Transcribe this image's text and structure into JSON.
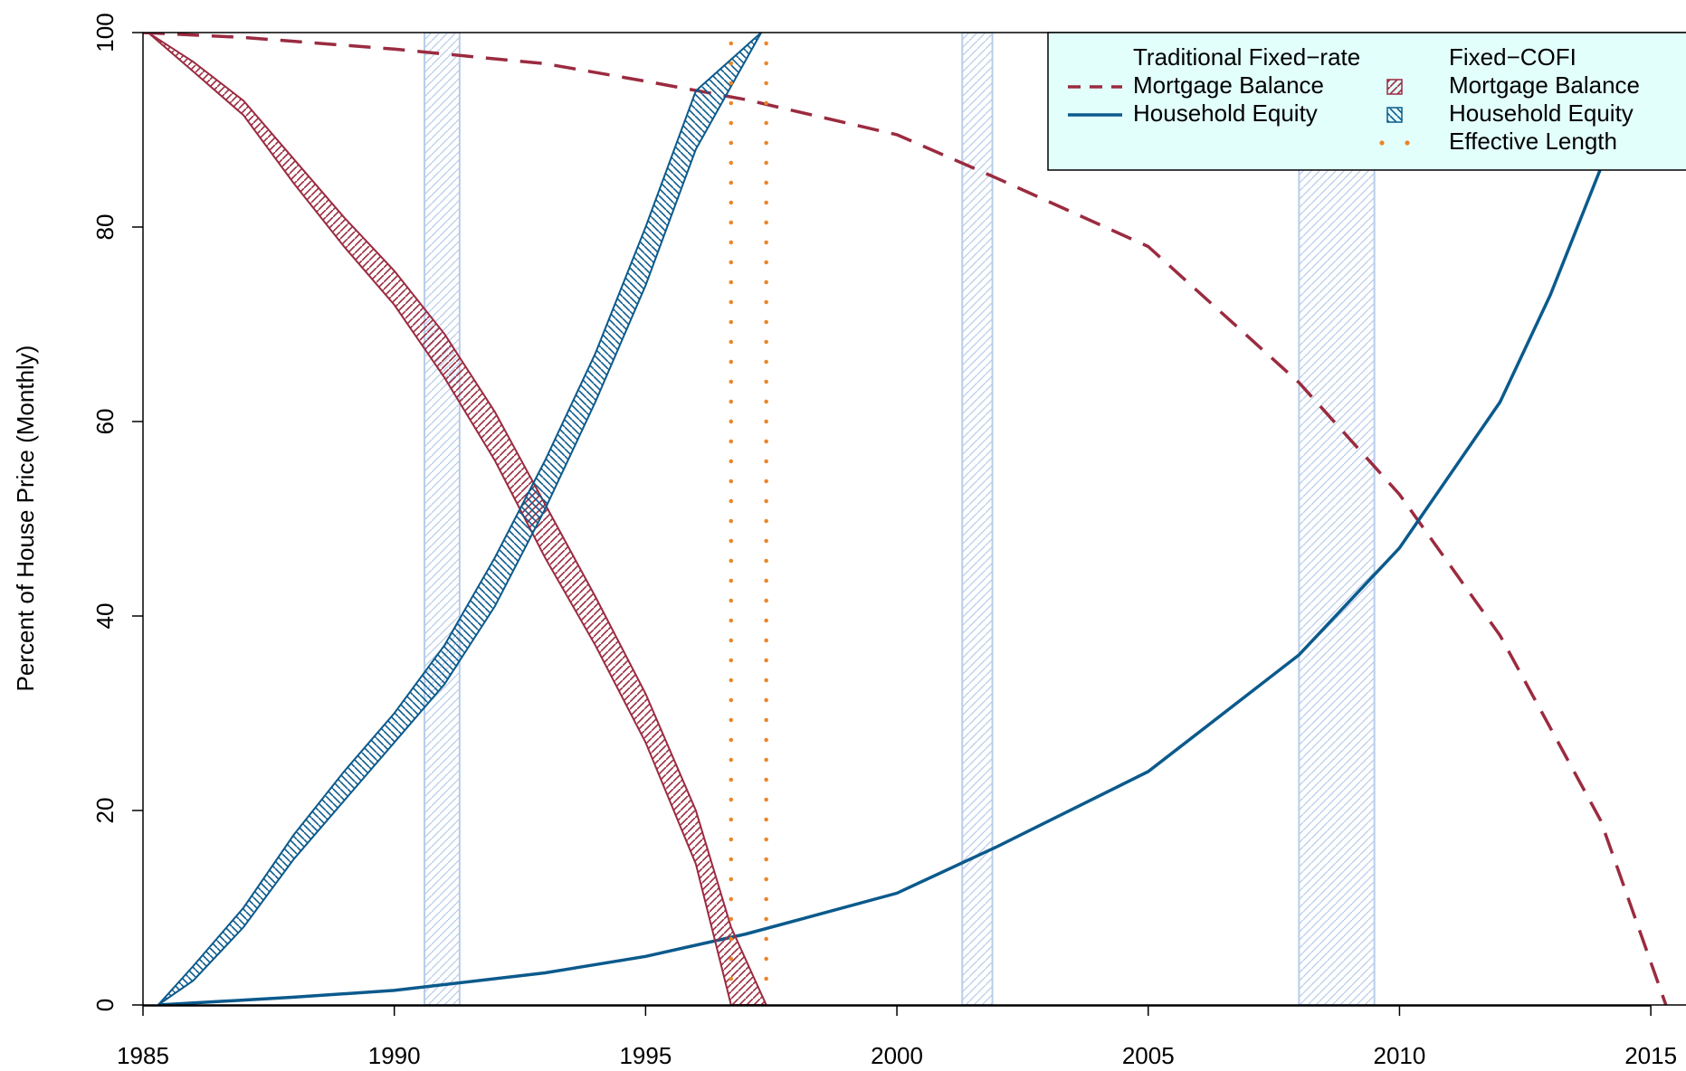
{
  "chart_data": {
    "type": "line",
    "y_label": "Percent of House Price (Monthly)",
    "xlim": [
      1985,
      2015.7
    ],
    "ylim": [
      0,
      100
    ],
    "xticks": [
      1985,
      1990,
      1995,
      2000,
      2005,
      2010,
      2015
    ],
    "yticks": [
      0,
      20,
      40,
      60,
      80,
      100
    ],
    "shaded_color": "#b8cdea",
    "shaded_periods": [
      [
        1990.6,
        1991.3
      ],
      [
        2001.3,
        2001.9
      ],
      [
        2008.0,
        2009.5
      ]
    ],
    "series": [
      {
        "name": "Mortgage Balance",
        "kind": "line",
        "dash": true,
        "color": "#9b2b40",
        "x": [
          1985,
          1987,
          1990,
          1993,
          1995,
          1997,
          2000,
          2002,
          2005,
          2008,
          2010,
          2012,
          2014,
          2015.3
        ],
        "values": [
          100,
          99.5,
          98.3,
          96.8,
          95,
          93.1,
          89.5,
          85,
          78,
          64,
          52.5,
          38,
          19,
          0
        ]
      },
      {
        "name": "Household Equity",
        "kind": "line",
        "dash": false,
        "color": "#0b5a8c",
        "x": [
          1985.3,
          1988,
          1990,
          1993,
          1995,
          1997,
          2000,
          2002,
          2005,
          2008,
          2010,
          2012,
          2013,
          2014,
          2015.7
        ],
        "values": [
          0,
          0.8,
          1.5,
          3.3,
          5,
          7.3,
          11.5,
          16.3,
          24,
          36,
          47,
          62,
          73,
          86,
          100
        ]
      },
      {
        "name": "Mortgage Balance",
        "kind": "band",
        "hatch": "/",
        "color": "#9b2b40",
        "x": [
          1985.1,
          1986,
          1987,
          1988,
          1989,
          1990,
          1991,
          1992,
          1993,
          1994,
          1995,
          1996,
          1996.7,
          1997.4
        ],
        "lower": [
          100,
          96,
          91.5,
          84.5,
          78,
          72,
          64.5,
          56,
          46,
          37,
          27,
          14.5,
          0,
          0
        ],
        "upper": [
          100,
          97,
          93,
          87,
          81,
          75.5,
          69,
          61,
          51.5,
          42,
          32,
          20,
          8,
          0
        ]
      },
      {
        "name": "Household Equity",
        "kind": "band",
        "hatch": "\\",
        "color": "#0b5a8c",
        "x": [
          1985.3,
          1986,
          1987,
          1988,
          1989,
          1990,
          1991,
          1992,
          1993,
          1994,
          1995,
          1996,
          1997.3
        ],
        "lower": [
          0,
          2.5,
          8,
          15,
          21,
          27,
          33,
          41,
          51,
          62,
          74,
          88,
          100
        ],
        "upper": [
          0,
          4,
          10,
          17.5,
          24,
          30,
          37,
          46,
          56,
          67,
          80,
          94,
          100
        ]
      },
      {
        "name": "Effective Length",
        "kind": "vline",
        "color": "#e8862a",
        "x": [
          1996.7,
          1997.4
        ]
      }
    ],
    "legend": {
      "position": "top right",
      "background": "#e2fffb",
      "groups": [
        {
          "title": "Traditional Fixed−rate",
          "series": [
            0,
            1
          ]
        },
        {
          "title": "Fixed−COFI",
          "series": [
            2,
            3,
            4
          ]
        }
      ]
    }
  }
}
